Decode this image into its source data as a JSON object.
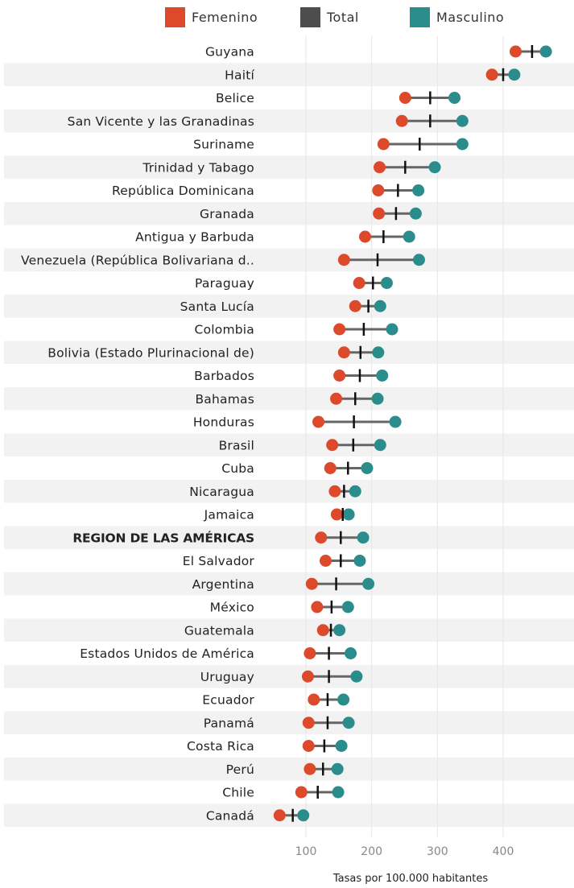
{
  "legend": {
    "female_label": "Femenino",
    "total_label": "Total",
    "male_label": "Masculino"
  },
  "colors": {
    "female": "#dc4a2b",
    "total": "#4d4d4d",
    "male": "#2b8c8c",
    "band": "#f2f2f2",
    "grid": "#e6e6e6",
    "connector": "#666666"
  },
  "chart_data": {
    "type": "dot",
    "xlabel": "Tasas por 100.000 habitantes",
    "xlim": [
      50,
      480
    ],
    "xticks": [
      100,
      200,
      300,
      400
    ],
    "series": [
      {
        "name": "Femenino",
        "key": "f"
      },
      {
        "name": "Total",
        "key": "t"
      },
      {
        "name": "Masculino",
        "key": "m"
      }
    ],
    "rows": [
      {
        "label": "Guyana",
        "f": 419,
        "t": 444,
        "m": 465,
        "bold": false
      },
      {
        "label": "Haití",
        "f": 383,
        "t": 400,
        "m": 417,
        "bold": false
      },
      {
        "label": "Belice",
        "f": 251,
        "t": 289,
        "m": 326,
        "bold": false
      },
      {
        "label": "San Vicente y las Granadinas",
        "f": 246,
        "t": 289,
        "m": 338,
        "bold": false
      },
      {
        "label": "Suriname",
        "f": 218,
        "t": 273,
        "m": 338,
        "bold": false
      },
      {
        "label": "Trinidad y Tabago",
        "f": 212,
        "t": 251,
        "m": 296,
        "bold": false
      },
      {
        "label": "República Dominicana",
        "f": 210,
        "t": 240,
        "m": 271,
        "bold": false
      },
      {
        "label": "Granada",
        "f": 211,
        "t": 237,
        "m": 267,
        "bold": false
      },
      {
        "label": "Antigua y Barbuda",
        "f": 190,
        "t": 218,
        "m": 257,
        "bold": false
      },
      {
        "label": "Venezuela (República Bolivariana d..",
        "f": 158,
        "t": 209,
        "m": 272,
        "bold": false
      },
      {
        "label": "Paraguay",
        "f": 181,
        "t": 202,
        "m": 223,
        "bold": false
      },
      {
        "label": "Santa Lucía",
        "f": 175,
        "t": 195,
        "m": 213,
        "bold": false
      },
      {
        "label": "Colombia",
        "f": 151,
        "t": 188,
        "m": 231,
        "bold": false
      },
      {
        "label": "Bolivia (Estado Plurinacional de)",
        "f": 158,
        "t": 183,
        "m": 210,
        "bold": false
      },
      {
        "label": "Barbados",
        "f": 151,
        "t": 182,
        "m": 216,
        "bold": false
      },
      {
        "label": "Bahamas",
        "f": 146,
        "t": 175,
        "m": 209,
        "bold": false
      },
      {
        "label": "Honduras",
        "f": 119,
        "t": 173,
        "m": 236,
        "bold": false
      },
      {
        "label": "Brasil",
        "f": 140,
        "t": 172,
        "m": 213,
        "bold": false
      },
      {
        "label": "Cuba",
        "f": 137,
        "t": 164,
        "m": 193,
        "bold": false
      },
      {
        "label": "Nicaragua",
        "f": 144,
        "t": 158,
        "m": 175,
        "bold": false
      },
      {
        "label": "Jamaica",
        "f": 147,
        "t": 156,
        "m": 165,
        "bold": false
      },
      {
        "label": "REGION DE LAS AMÉRICAS",
        "f": 123,
        "t": 153,
        "m": 187,
        "bold": true
      },
      {
        "label": "El Salvador",
        "f": 130,
        "t": 153,
        "m": 182,
        "bold": false
      },
      {
        "label": "Argentina",
        "f": 109,
        "t": 146,
        "m": 195,
        "bold": false
      },
      {
        "label": "México",
        "f": 117,
        "t": 139,
        "m": 164,
        "bold": false
      },
      {
        "label": "Guatemala",
        "f": 126,
        "t": 138,
        "m": 151,
        "bold": false
      },
      {
        "label": "Estados Unidos de América",
        "f": 106,
        "t": 135,
        "m": 168,
        "bold": false
      },
      {
        "label": "Uruguay",
        "f": 103,
        "t": 135,
        "m": 177,
        "bold": false
      },
      {
        "label": "Ecuador",
        "f": 112,
        "t": 133,
        "m": 157,
        "bold": false
      },
      {
        "label": "Panamá",
        "f": 104,
        "t": 133,
        "m": 165,
        "bold": false
      },
      {
        "label": "Costa Rica",
        "f": 104,
        "t": 128,
        "m": 154,
        "bold": false
      },
      {
        "label": "Perú",
        "f": 106,
        "t": 126,
        "m": 148,
        "bold": false
      },
      {
        "label": "Chile",
        "f": 93,
        "t": 118,
        "m": 149,
        "bold": false
      },
      {
        "label": "Canadá",
        "f": 60,
        "t": 80,
        "m": 96,
        "bold": false
      }
    ]
  }
}
